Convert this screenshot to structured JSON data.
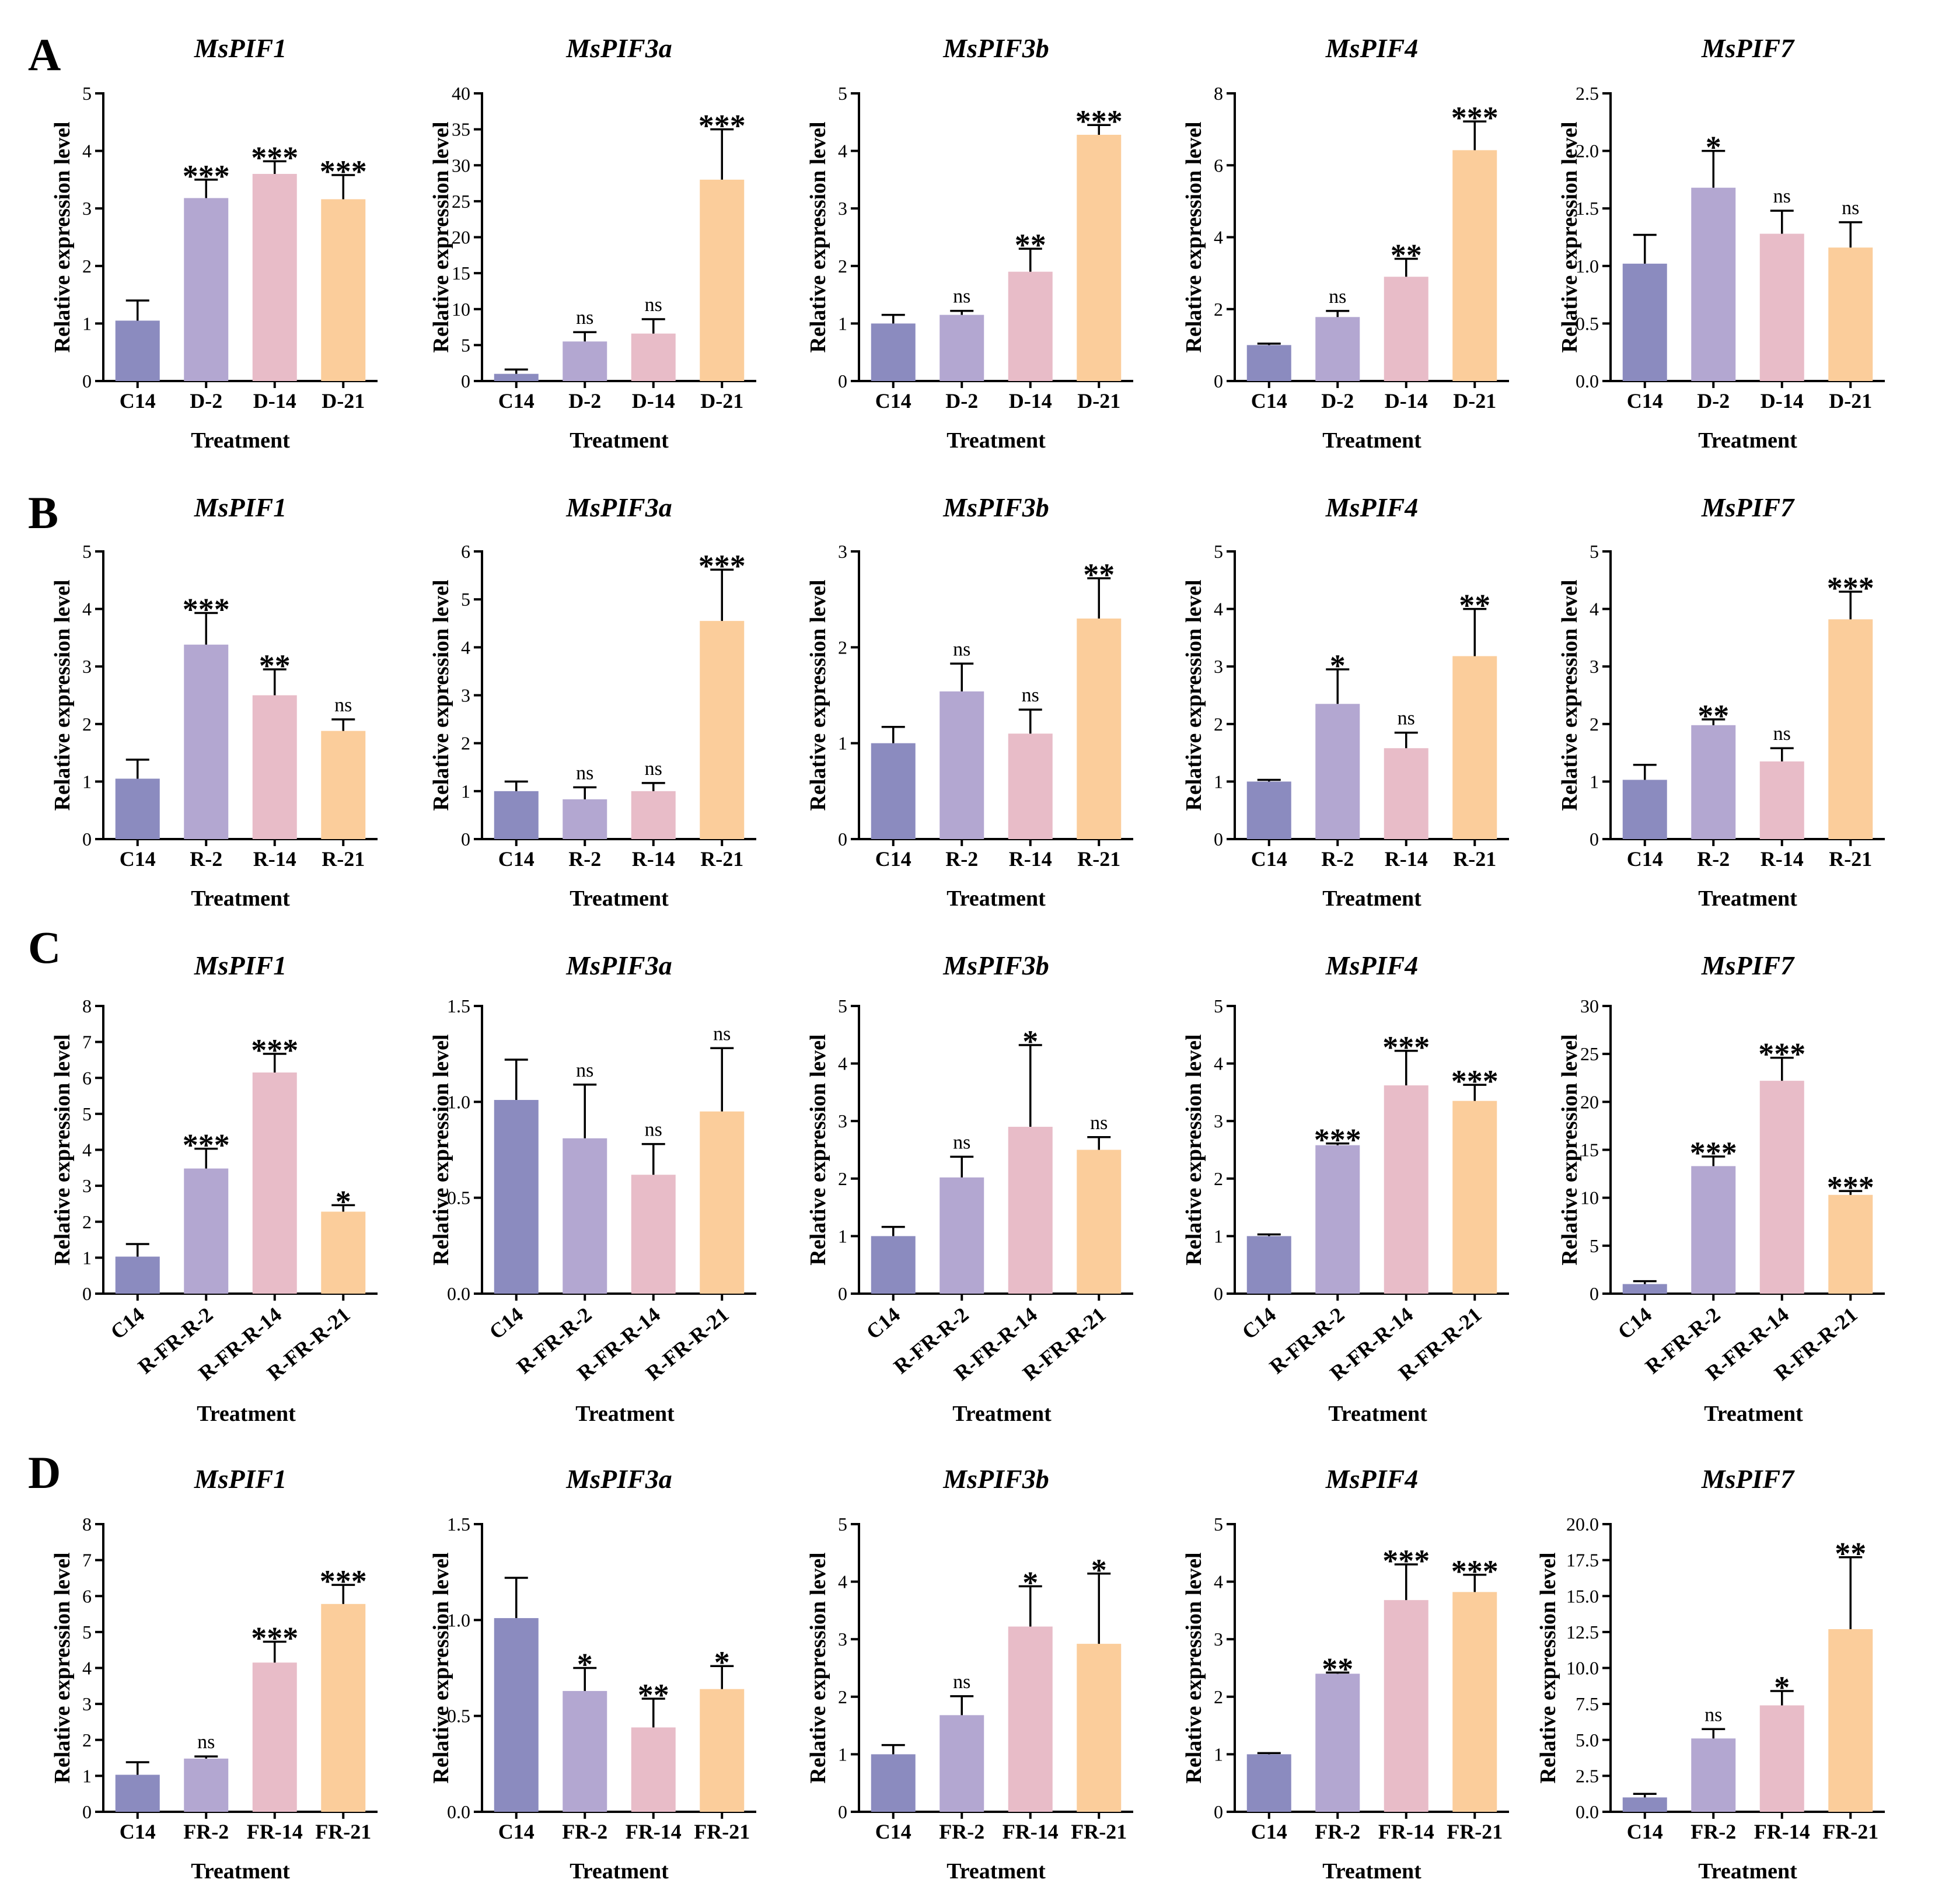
{
  "colors": [
    "#8b8bbf",
    "#b3a7d1",
    "#e8bcc8",
    "#fbcd9b"
  ],
  "panels": [
    {
      "letter": "A"
    },
    {
      "letter": "B"
    },
    {
      "letter": "C"
    },
    {
      "letter": "D"
    }
  ],
  "chart_data": [
    {
      "panel": "A",
      "type": "bar",
      "title": "MsPIF1",
      "xlabel": "Treatment",
      "ylabel": "Relative expression level",
      "categories": [
        "C14",
        "D-2",
        "D-14",
        "D-21"
      ],
      "values": [
        1.05,
        3.18,
        3.6,
        3.16
      ],
      "errors": [
        0.35,
        0.32,
        0.22,
        0.42
      ],
      "sig": [
        "",
        "***",
        "***",
        "***"
      ],
      "ylim": [
        0,
        5
      ],
      "yticks": [
        "0",
        "1",
        "2",
        "3",
        "4",
        "5"
      ]
    },
    {
      "panel": "A",
      "type": "bar",
      "title": "MsPIF3a",
      "xlabel": "Treatment",
      "ylabel": "Relative expression level",
      "categories": [
        "C14",
        "D-2",
        "D-14",
        "D-21"
      ],
      "values": [
        1.0,
        5.5,
        6.6,
        28.0
      ],
      "errors": [
        0.6,
        1.3,
        2.0,
        7.0
      ],
      "sig": [
        "",
        "ns",
        "ns",
        "***"
      ],
      "ylim": [
        0,
        40
      ],
      "yticks": [
        "0",
        "5",
        "10",
        "15",
        "20",
        "25",
        "30",
        "35",
        "40"
      ]
    },
    {
      "panel": "A",
      "type": "bar",
      "title": "MsPIF3b",
      "xlabel": "Treatment",
      "ylabel": "Relative expression level",
      "categories": [
        "C14",
        "D-2",
        "D-14",
        "D-21"
      ],
      "values": [
        1.0,
        1.15,
        1.9,
        4.28
      ],
      "errors": [
        0.15,
        0.07,
        0.4,
        0.17
      ],
      "sig": [
        "",
        "ns",
        "**",
        "***"
      ],
      "ylim": [
        0,
        5
      ],
      "yticks": [
        "0",
        "1",
        "2",
        "3",
        "4",
        "5"
      ]
    },
    {
      "panel": "A",
      "type": "bar",
      "title": "MsPIF4",
      "xlabel": "Treatment",
      "ylabel": "Relative expression level",
      "categories": [
        "C14",
        "D-2",
        "D-14",
        "D-21"
      ],
      "values": [
        1.0,
        1.78,
        2.9,
        6.42
      ],
      "errors": [
        0.04,
        0.17,
        0.5,
        0.8
      ],
      "sig": [
        "",
        "ns",
        "**",
        "***"
      ],
      "ylim": [
        0,
        8
      ],
      "yticks": [
        "0",
        "2",
        "4",
        "6",
        "8"
      ]
    },
    {
      "panel": "A",
      "type": "bar",
      "title": "MsPIF7",
      "xlabel": "Treatment",
      "ylabel": "Relative expression level",
      "categories": [
        "C14",
        "D-2",
        "D-14",
        "D-21"
      ],
      "values": [
        1.02,
        1.68,
        1.28,
        1.16
      ],
      "errors": [
        0.25,
        0.32,
        0.2,
        0.22
      ],
      "sig": [
        "",
        "*",
        "ns",
        "ns"
      ],
      "ylim": [
        0,
        2.5
      ],
      "yticks": [
        "0.0",
        "0.5",
        "1.0",
        "1.5",
        "2.0",
        "2.5"
      ]
    },
    {
      "panel": "B",
      "type": "bar",
      "title": "MsPIF1",
      "xlabel": "Treatment",
      "ylabel": "Relative expression level",
      "categories": [
        "C14",
        "R-2",
        "R-14",
        "R-21"
      ],
      "values": [
        1.05,
        3.38,
        2.5,
        1.88
      ],
      "errors": [
        0.33,
        0.55,
        0.45,
        0.2
      ],
      "sig": [
        "",
        "***",
        "**",
        "ns"
      ],
      "ylim": [
        0,
        5
      ],
      "yticks": [
        "0",
        "1",
        "2",
        "3",
        "4",
        "5"
      ]
    },
    {
      "panel": "B",
      "type": "bar",
      "title": "MsPIF3a",
      "xlabel": "Treatment",
      "ylabel": "Relative expression level",
      "categories": [
        "C14",
        "R-2",
        "R-14",
        "R-21"
      ],
      "values": [
        1.0,
        0.83,
        1.0,
        4.55
      ],
      "errors": [
        0.2,
        0.25,
        0.17,
        1.07
      ],
      "sig": [
        "",
        "ns",
        "ns",
        "***"
      ],
      "ylim": [
        0,
        6
      ],
      "yticks": [
        "0",
        "1",
        "2",
        "3",
        "4",
        "5",
        "6"
      ]
    },
    {
      "panel": "B",
      "type": "bar",
      "title": "MsPIF3b",
      "xlabel": "Treatment",
      "ylabel": "Relative expression level",
      "categories": [
        "C14",
        "R-2",
        "R-14",
        "R-21"
      ],
      "values": [
        1.0,
        1.54,
        1.1,
        2.3
      ],
      "errors": [
        0.17,
        0.29,
        0.25,
        0.42
      ],
      "sig": [
        "",
        "ns",
        "ns",
        "**"
      ],
      "ylim": [
        0,
        3
      ],
      "yticks": [
        "0",
        "1",
        "2",
        "3"
      ]
    },
    {
      "panel": "B",
      "type": "bar",
      "title": "MsPIF4",
      "xlabel": "Treatment",
      "ylabel": "Relative expression level",
      "categories": [
        "C14",
        "R-2",
        "R-14",
        "R-21"
      ],
      "values": [
        1.0,
        2.35,
        1.58,
        3.18
      ],
      "errors": [
        0.03,
        0.6,
        0.27,
        0.82
      ],
      "sig": [
        "",
        "*",
        "ns",
        "**"
      ],
      "ylim": [
        0,
        5
      ],
      "yticks": [
        "0",
        "1",
        "2",
        "3",
        "4",
        "5"
      ]
    },
    {
      "panel": "B",
      "type": "bar",
      "title": "MsPIF7",
      "xlabel": "Treatment",
      "ylabel": "Relative expression level",
      "categories": [
        "C14",
        "R-2",
        "R-14",
        "R-21"
      ],
      "values": [
        1.03,
        1.98,
        1.35,
        3.82
      ],
      "errors": [
        0.26,
        0.1,
        0.23,
        0.48
      ],
      "sig": [
        "",
        "**",
        "ns",
        "***"
      ],
      "ylim": [
        0,
        5
      ],
      "yticks": [
        "0",
        "1",
        "2",
        "3",
        "4",
        "5"
      ]
    },
    {
      "panel": "C",
      "type": "bar",
      "title": "MsPIF1",
      "xlabel": "Treatment",
      "ylabel": "Relative expression level",
      "categories": [
        "C14",
        "R-FR-R-2",
        "R-FR-R-14",
        "R-FR-R-21"
      ],
      "values": [
        1.03,
        3.48,
        6.15,
        2.28
      ],
      "errors": [
        0.35,
        0.55,
        0.52,
        0.18
      ],
      "sig": [
        "",
        "***",
        "***",
        "*"
      ],
      "ylim": [
        0,
        8
      ],
      "yticks": [
        "0",
        "1",
        "2",
        "3",
        "4",
        "5",
        "6",
        "7",
        "8"
      ]
    },
    {
      "panel": "C",
      "type": "bar",
      "title": "MsPIF3a",
      "xlabel": "Treatment",
      "ylabel": "Relative expression level",
      "categories": [
        "C14",
        "R-FR-R-2",
        "R-FR-R-14",
        "R-FR-R-21"
      ],
      "values": [
        1.01,
        0.81,
        0.62,
        0.95
      ],
      "errors": [
        0.21,
        0.28,
        0.16,
        0.33
      ],
      "sig": [
        "",
        "ns",
        "ns",
        "ns"
      ],
      "ylim": [
        0,
        1.5
      ],
      "yticks": [
        "0.0",
        "0.5",
        "1.0",
        "1.5"
      ]
    },
    {
      "panel": "C",
      "type": "bar",
      "title": "MsPIF3b",
      "xlabel": "Treatment",
      "ylabel": "Relative expression level",
      "categories": [
        "C14",
        "R-FR-R-2",
        "R-FR-R-14",
        "R-FR-R-21"
      ],
      "values": [
        1.0,
        2.02,
        2.9,
        2.5
      ],
      "errors": [
        0.16,
        0.36,
        1.42,
        0.22
      ],
      "sig": [
        "",
        "ns",
        "*",
        "ns"
      ],
      "ylim": [
        0,
        5
      ],
      "yticks": [
        "0",
        "1",
        "2",
        "3",
        "4",
        "5"
      ]
    },
    {
      "panel": "C",
      "type": "bar",
      "title": "MsPIF4",
      "xlabel": "Treatment",
      "ylabel": "Relative expression level",
      "categories": [
        "C14",
        "R-FR-R-2",
        "R-FR-R-14",
        "R-FR-R-21"
      ],
      "values": [
        1.0,
        2.58,
        3.62,
        3.35
      ],
      "errors": [
        0.03,
        0.03,
        0.6,
        0.28
      ],
      "sig": [
        "",
        "***",
        "***",
        "***"
      ],
      "ylim": [
        0,
        5
      ],
      "yticks": [
        "0",
        "1",
        "2",
        "3",
        "4",
        "5"
      ]
    },
    {
      "panel": "C",
      "type": "bar",
      "title": "MsPIF7",
      "xlabel": "Treatment",
      "ylabel": "Relative expression level",
      "categories": [
        "C14",
        "R-FR-R-2",
        "R-FR-R-14",
        "R-FR-R-21"
      ],
      "values": [
        1.0,
        13.3,
        22.2,
        10.3
      ],
      "errors": [
        0.3,
        1.0,
        2.4,
        0.4
      ],
      "sig": [
        "",
        "***",
        "***",
        "***"
      ],
      "ylim": [
        0,
        30
      ],
      "yticks": [
        "0",
        "5",
        "10",
        "15",
        "20",
        "25",
        "30"
      ]
    },
    {
      "panel": "D",
      "type": "bar",
      "title": "MsPIF1",
      "xlabel": "Treatment",
      "ylabel": "Relative expression level",
      "categories": [
        "C14",
        "FR-2",
        "FR-14",
        "FR-21"
      ],
      "values": [
        1.03,
        1.48,
        4.15,
        5.78
      ],
      "errors": [
        0.35,
        0.06,
        0.58,
        0.53
      ],
      "sig": [
        "",
        "ns",
        "***",
        "***"
      ],
      "ylim": [
        0,
        8
      ],
      "yticks": [
        "0",
        "1",
        "2",
        "3",
        "4",
        "5",
        "6",
        "7",
        "8"
      ]
    },
    {
      "panel": "D",
      "type": "bar",
      "title": "MsPIF3a",
      "xlabel": "Treatment",
      "ylabel": "Relative expression level",
      "categories": [
        "C14",
        "FR-2",
        "FR-14",
        "FR-21"
      ],
      "values": [
        1.01,
        0.63,
        0.44,
        0.64
      ],
      "errors": [
        0.21,
        0.12,
        0.15,
        0.12
      ],
      "sig": [
        "",
        "*",
        "**",
        "*"
      ],
      "ylim": [
        0,
        1.5
      ],
      "yticks": [
        "0.0",
        "0.5",
        "1.0",
        "1.5"
      ]
    },
    {
      "panel": "D",
      "type": "bar",
      "title": "MsPIF3b",
      "xlabel": "Treatment",
      "ylabel": "Relative expression level",
      "categories": [
        "C14",
        "FR-2",
        "FR-14",
        "FR-21"
      ],
      "values": [
        1.0,
        1.68,
        3.22,
        2.92
      ],
      "errors": [
        0.16,
        0.33,
        0.7,
        1.22
      ],
      "sig": [
        "",
        "ns",
        "*",
        "*"
      ],
      "ylim": [
        0,
        5
      ],
      "yticks": [
        "0",
        "1",
        "2",
        "3",
        "4",
        "5"
      ]
    },
    {
      "panel": "D",
      "type": "bar",
      "title": "MsPIF4",
      "xlabel": "Treatment",
      "ylabel": "Relative expression level",
      "categories": [
        "C14",
        "FR-2",
        "FR-14",
        "FR-21"
      ],
      "values": [
        1.0,
        2.4,
        3.68,
        3.82
      ],
      "errors": [
        0.02,
        0.02,
        0.62,
        0.3
      ],
      "sig": [
        "",
        "**",
        "***",
        "***"
      ],
      "ylim": [
        0,
        5
      ],
      "yticks": [
        "0",
        "1",
        "2",
        "3",
        "4",
        "5"
      ]
    },
    {
      "panel": "D",
      "type": "bar",
      "title": "MsPIF7",
      "xlabel": "Treatment",
      "ylabel": "Relative expression level",
      "categories": [
        "C14",
        "FR-2",
        "FR-14",
        "FR-21"
      ],
      "values": [
        1.0,
        5.1,
        7.4,
        12.7
      ],
      "errors": [
        0.25,
        0.65,
        1.0,
        5.0
      ],
      "sig": [
        "",
        "ns",
        "*",
        "**"
      ],
      "ylim": [
        0,
        20
      ],
      "yticks": [
        "0.0",
        "2.5",
        "5.0",
        "7.5",
        "10.0",
        "12.5",
        "15.0",
        "17.5",
        "20.0"
      ]
    }
  ]
}
